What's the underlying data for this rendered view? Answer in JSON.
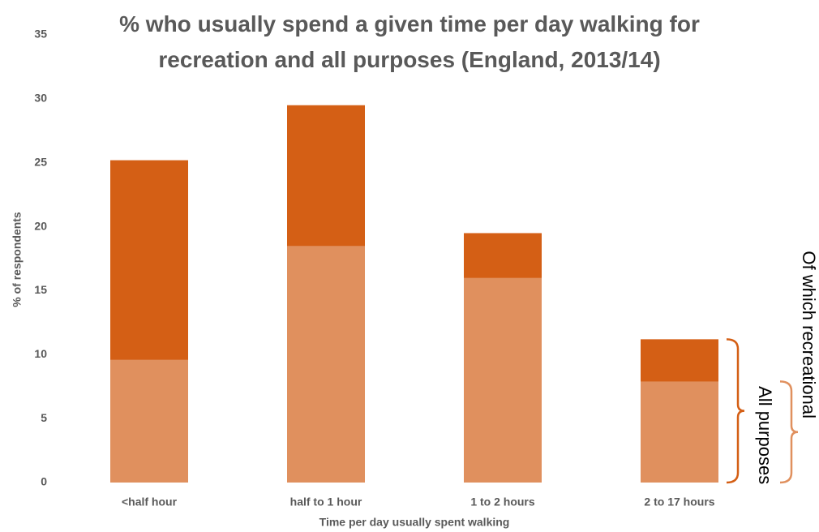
{
  "chart_data": {
    "type": "bar",
    "title": "% who usually spend a given time per day walking for recreation and all purposes (England, 2013/14)",
    "x_label": "Time per day usually spent walking",
    "y_label": "% of respondents",
    "categories": [
      "<half hour",
      "half to 1 hour",
      "1 to 2 hours",
      "2 to 17 hours"
    ],
    "series": [
      {
        "name": "All purposes",
        "color": "#d45f15",
        "values": [
          25.2,
          29.5,
          19.5,
          11.2
        ]
      },
      {
        "name": "Of which recreational",
        "color": "#e0905e",
        "values": [
          9.6,
          18.5,
          16.0,
          7.9
        ]
      }
    ],
    "ylim": [
      0,
      35
    ],
    "yticks": [
      0,
      5,
      10,
      15,
      20,
      25,
      30,
      35
    ],
    "grid": false
  }
}
